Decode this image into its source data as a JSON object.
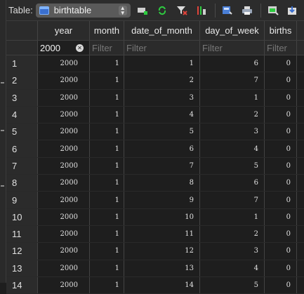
{
  "toolbar": {
    "table_label": "Table:",
    "table_name": "birthtable",
    "select_arrows": "⌃⌄"
  },
  "columns": [
    "year",
    "month",
    "date_of_month",
    "day_of_week",
    "births"
  ],
  "filters": {
    "year_value": "2000",
    "placeholder": "Filter"
  },
  "rows": [
    {
      "id": "1",
      "year": "2000",
      "month": "1",
      "date_of_month": "1",
      "day_of_week": "6",
      "births": "0"
    },
    {
      "id": "2",
      "year": "2000",
      "month": "1",
      "date_of_month": "2",
      "day_of_week": "7",
      "births": "0"
    },
    {
      "id": "3",
      "year": "2000",
      "month": "1",
      "date_of_month": "3",
      "day_of_week": "1",
      "births": "0"
    },
    {
      "id": "4",
      "year": "2000",
      "month": "1",
      "date_of_month": "4",
      "day_of_week": "2",
      "births": "0"
    },
    {
      "id": "5",
      "year": "2000",
      "month": "1",
      "date_of_month": "5",
      "day_of_week": "3",
      "births": "0"
    },
    {
      "id": "6",
      "year": "2000",
      "month": "1",
      "date_of_month": "6",
      "day_of_week": "4",
      "births": "0"
    },
    {
      "id": "7",
      "year": "2000",
      "month": "1",
      "date_of_month": "7",
      "day_of_week": "5",
      "births": "0"
    },
    {
      "id": "8",
      "year": "2000",
      "month": "1",
      "date_of_month": "8",
      "day_of_week": "6",
      "births": "0"
    },
    {
      "id": "9",
      "year": "2000",
      "month": "1",
      "date_of_month": "9",
      "day_of_week": "7",
      "births": "0"
    },
    {
      "id": "10",
      "year": "2000",
      "month": "1",
      "date_of_month": "10",
      "day_of_week": "1",
      "births": "0"
    },
    {
      "id": "11",
      "year": "2000",
      "month": "1",
      "date_of_month": "11",
      "day_of_week": "2",
      "births": "0"
    },
    {
      "id": "12",
      "year": "2000",
      "month": "1",
      "date_of_month": "12",
      "day_of_week": "3",
      "births": "0"
    },
    {
      "id": "13",
      "year": "2000",
      "month": "1",
      "date_of_month": "13",
      "day_of_week": "4",
      "births": "0"
    },
    {
      "id": "14",
      "year": "2000",
      "month": "1",
      "date_of_month": "14",
      "day_of_week": "5",
      "births": "0"
    }
  ],
  "icons": {
    "accent": "#3a6fcf",
    "green": "#2ecc40",
    "red": "#e0433a"
  }
}
